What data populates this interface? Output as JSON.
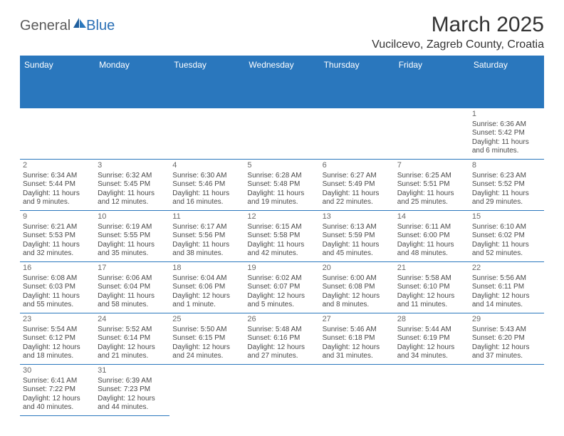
{
  "brand": {
    "part1": "General",
    "part2": "Blue"
  },
  "title": "March 2025",
  "location": "Vucilcevo, Zagreb County, Croatia",
  "colors": {
    "header_bg": "#2a77bd",
    "header_text": "#ffffff",
    "body_text": "#4a4a4a",
    "border": "#2a77bd",
    "page_bg": "#ffffff"
  },
  "dayHeaders": [
    "Sunday",
    "Monday",
    "Tuesday",
    "Wednesday",
    "Thursday",
    "Friday",
    "Saturday"
  ],
  "weeks": [
    [
      null,
      null,
      null,
      null,
      null,
      null,
      {
        "n": "1",
        "sr": "Sunrise: 6:36 AM",
        "ss": "Sunset: 5:42 PM",
        "dl1": "Daylight: 11 hours",
        "dl2": "and 6 minutes."
      }
    ],
    [
      {
        "n": "2",
        "sr": "Sunrise: 6:34 AM",
        "ss": "Sunset: 5:44 PM",
        "dl1": "Daylight: 11 hours",
        "dl2": "and 9 minutes."
      },
      {
        "n": "3",
        "sr": "Sunrise: 6:32 AM",
        "ss": "Sunset: 5:45 PM",
        "dl1": "Daylight: 11 hours",
        "dl2": "and 12 minutes."
      },
      {
        "n": "4",
        "sr": "Sunrise: 6:30 AM",
        "ss": "Sunset: 5:46 PM",
        "dl1": "Daylight: 11 hours",
        "dl2": "and 16 minutes."
      },
      {
        "n": "5",
        "sr": "Sunrise: 6:28 AM",
        "ss": "Sunset: 5:48 PM",
        "dl1": "Daylight: 11 hours",
        "dl2": "and 19 minutes."
      },
      {
        "n": "6",
        "sr": "Sunrise: 6:27 AM",
        "ss": "Sunset: 5:49 PM",
        "dl1": "Daylight: 11 hours",
        "dl2": "and 22 minutes."
      },
      {
        "n": "7",
        "sr": "Sunrise: 6:25 AM",
        "ss": "Sunset: 5:51 PM",
        "dl1": "Daylight: 11 hours",
        "dl2": "and 25 minutes."
      },
      {
        "n": "8",
        "sr": "Sunrise: 6:23 AM",
        "ss": "Sunset: 5:52 PM",
        "dl1": "Daylight: 11 hours",
        "dl2": "and 29 minutes."
      }
    ],
    [
      {
        "n": "9",
        "sr": "Sunrise: 6:21 AM",
        "ss": "Sunset: 5:53 PM",
        "dl1": "Daylight: 11 hours",
        "dl2": "and 32 minutes."
      },
      {
        "n": "10",
        "sr": "Sunrise: 6:19 AM",
        "ss": "Sunset: 5:55 PM",
        "dl1": "Daylight: 11 hours",
        "dl2": "and 35 minutes."
      },
      {
        "n": "11",
        "sr": "Sunrise: 6:17 AM",
        "ss": "Sunset: 5:56 PM",
        "dl1": "Daylight: 11 hours",
        "dl2": "and 38 minutes."
      },
      {
        "n": "12",
        "sr": "Sunrise: 6:15 AM",
        "ss": "Sunset: 5:58 PM",
        "dl1": "Daylight: 11 hours",
        "dl2": "and 42 minutes."
      },
      {
        "n": "13",
        "sr": "Sunrise: 6:13 AM",
        "ss": "Sunset: 5:59 PM",
        "dl1": "Daylight: 11 hours",
        "dl2": "and 45 minutes."
      },
      {
        "n": "14",
        "sr": "Sunrise: 6:11 AM",
        "ss": "Sunset: 6:00 PM",
        "dl1": "Daylight: 11 hours",
        "dl2": "and 48 minutes."
      },
      {
        "n": "15",
        "sr": "Sunrise: 6:10 AM",
        "ss": "Sunset: 6:02 PM",
        "dl1": "Daylight: 11 hours",
        "dl2": "and 52 minutes."
      }
    ],
    [
      {
        "n": "16",
        "sr": "Sunrise: 6:08 AM",
        "ss": "Sunset: 6:03 PM",
        "dl1": "Daylight: 11 hours",
        "dl2": "and 55 minutes."
      },
      {
        "n": "17",
        "sr": "Sunrise: 6:06 AM",
        "ss": "Sunset: 6:04 PM",
        "dl1": "Daylight: 11 hours",
        "dl2": "and 58 minutes."
      },
      {
        "n": "18",
        "sr": "Sunrise: 6:04 AM",
        "ss": "Sunset: 6:06 PM",
        "dl1": "Daylight: 12 hours",
        "dl2": "and 1 minute."
      },
      {
        "n": "19",
        "sr": "Sunrise: 6:02 AM",
        "ss": "Sunset: 6:07 PM",
        "dl1": "Daylight: 12 hours",
        "dl2": "and 5 minutes."
      },
      {
        "n": "20",
        "sr": "Sunrise: 6:00 AM",
        "ss": "Sunset: 6:08 PM",
        "dl1": "Daylight: 12 hours",
        "dl2": "and 8 minutes."
      },
      {
        "n": "21",
        "sr": "Sunrise: 5:58 AM",
        "ss": "Sunset: 6:10 PM",
        "dl1": "Daylight: 12 hours",
        "dl2": "and 11 minutes."
      },
      {
        "n": "22",
        "sr": "Sunrise: 5:56 AM",
        "ss": "Sunset: 6:11 PM",
        "dl1": "Daylight: 12 hours",
        "dl2": "and 14 minutes."
      }
    ],
    [
      {
        "n": "23",
        "sr": "Sunrise: 5:54 AM",
        "ss": "Sunset: 6:12 PM",
        "dl1": "Daylight: 12 hours",
        "dl2": "and 18 minutes."
      },
      {
        "n": "24",
        "sr": "Sunrise: 5:52 AM",
        "ss": "Sunset: 6:14 PM",
        "dl1": "Daylight: 12 hours",
        "dl2": "and 21 minutes."
      },
      {
        "n": "25",
        "sr": "Sunrise: 5:50 AM",
        "ss": "Sunset: 6:15 PM",
        "dl1": "Daylight: 12 hours",
        "dl2": "and 24 minutes."
      },
      {
        "n": "26",
        "sr": "Sunrise: 5:48 AM",
        "ss": "Sunset: 6:16 PM",
        "dl1": "Daylight: 12 hours",
        "dl2": "and 27 minutes."
      },
      {
        "n": "27",
        "sr": "Sunrise: 5:46 AM",
        "ss": "Sunset: 6:18 PM",
        "dl1": "Daylight: 12 hours",
        "dl2": "and 31 minutes."
      },
      {
        "n": "28",
        "sr": "Sunrise: 5:44 AM",
        "ss": "Sunset: 6:19 PM",
        "dl1": "Daylight: 12 hours",
        "dl2": "and 34 minutes."
      },
      {
        "n": "29",
        "sr": "Sunrise: 5:43 AM",
        "ss": "Sunset: 6:20 PM",
        "dl1": "Daylight: 12 hours",
        "dl2": "and 37 minutes."
      }
    ],
    [
      {
        "n": "30",
        "sr": "Sunrise: 6:41 AM",
        "ss": "Sunset: 7:22 PM",
        "dl1": "Daylight: 12 hours",
        "dl2": "and 40 minutes."
      },
      {
        "n": "31",
        "sr": "Sunrise: 6:39 AM",
        "ss": "Sunset: 7:23 PM",
        "dl1": "Daylight: 12 hours",
        "dl2": "and 44 minutes."
      },
      null,
      null,
      null,
      null,
      null
    ]
  ]
}
